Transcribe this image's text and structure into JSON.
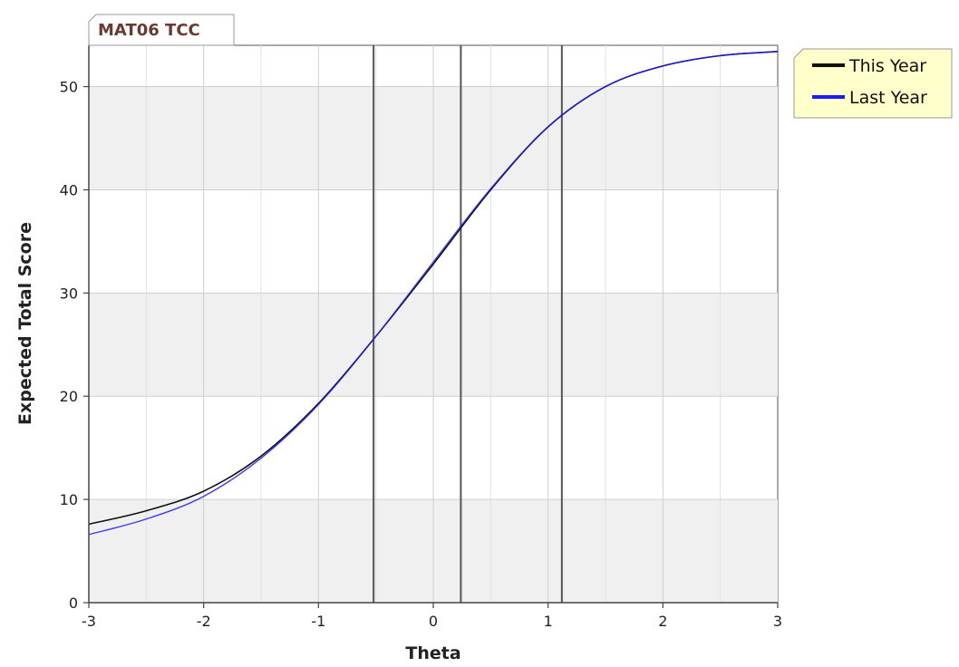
{
  "chart_data": {
    "type": "line",
    "title": "MAT06 TCC",
    "xlabel": "Theta",
    "ylabel": "Expected Total Score",
    "xlim": [
      -3,
      3
    ],
    "ylim": [
      0,
      54
    ],
    "x_ticks": [
      -3,
      -2,
      -1,
      0,
      1,
      2,
      3
    ],
    "y_ticks": [
      0,
      10,
      20,
      30,
      40,
      50
    ],
    "x_tick_labels": [
      "-3",
      "-2",
      "-1",
      "0",
      "1",
      "2",
      "3"
    ],
    "y_tick_labels": [
      "0",
      "10",
      "20",
      "30",
      "40",
      "50"
    ],
    "grid": true,
    "legend_position": "top-right outside",
    "vertical_lines": [
      -0.52,
      0.24,
      1.12
    ],
    "series": [
      {
        "name": "This Year",
        "color": "#111111",
        "x": [
          -3,
          -2.5,
          -2,
          -1.5,
          -1,
          -0.5,
          0,
          0.5,
          1,
          1.5,
          2,
          2.5,
          3
        ],
        "values": [
          7.6,
          8.9,
          10.8,
          14.2,
          19.3,
          25.8,
          32.8,
          40.0,
          46.1,
          50.0,
          52.0,
          53.0,
          53.4
        ]
      },
      {
        "name": "Last Year",
        "color": "#1a1aff",
        "x": [
          -3,
          -2.5,
          -2,
          -1.5,
          -1,
          -0.5,
          0,
          0.5,
          1,
          1.5,
          2,
          2.5,
          3
        ],
        "values": [
          6.6,
          8.1,
          10.3,
          14.0,
          19.2,
          25.8,
          33.0,
          40.1,
          46.1,
          50.0,
          52.0,
          53.0,
          53.4
        ]
      }
    ]
  }
}
